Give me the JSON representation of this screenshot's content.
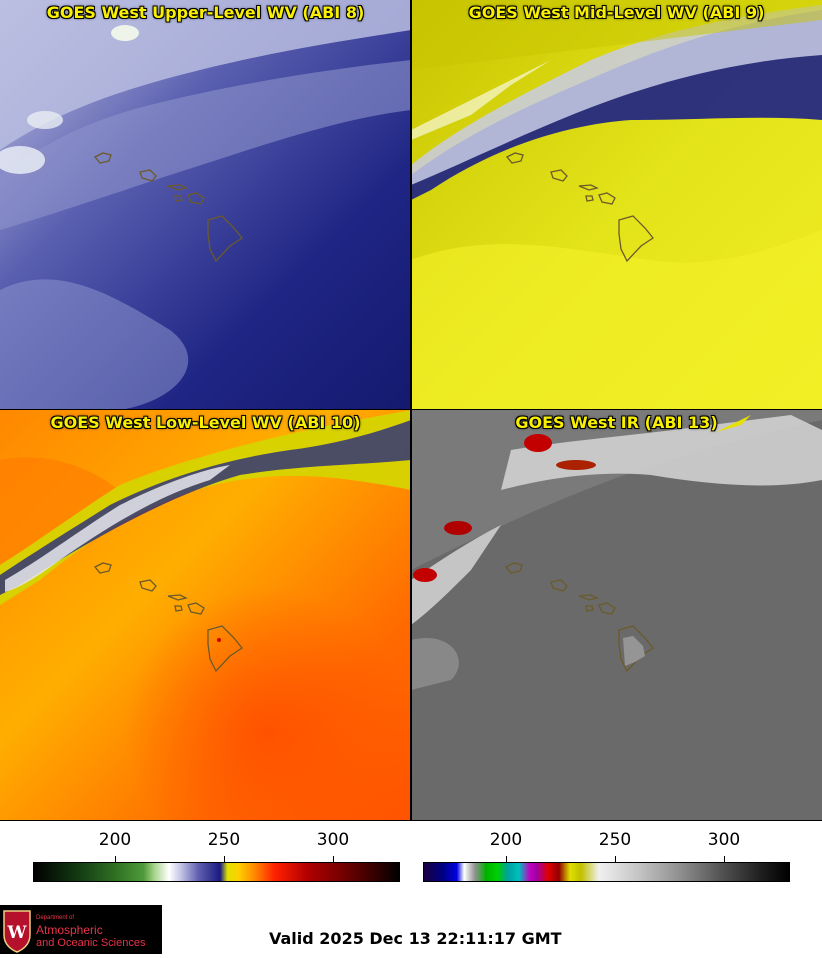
{
  "panels": [
    {
      "title": "GOES West Upper-Level WV (ABI 8)"
    },
    {
      "title": "GOES West Mid-Level WV (ABI 9)"
    },
    {
      "title": "GOES West Low-Level WV (ABI 10)"
    },
    {
      "title": "GOES West IR (ABI 13)"
    }
  ],
  "colorbars": [
    {
      "name": "water-vapor",
      "ticks": [
        "200",
        "250",
        "300"
      ]
    },
    {
      "name": "infrared",
      "ticks": [
        "200",
        "250",
        "300"
      ]
    }
  ],
  "logo": {
    "line1": "Department of",
    "line2": "Atmospheric",
    "line3": "and Oceanic Sciences",
    "shield_letter": "W"
  },
  "footer": {
    "valid": "Valid 2025 Dec 13 22:11:17 GMT"
  },
  "colors": {
    "title_text": "#f8f000",
    "island_outline": "#6b5a2a",
    "logo_text": "#e8334a"
  }
}
